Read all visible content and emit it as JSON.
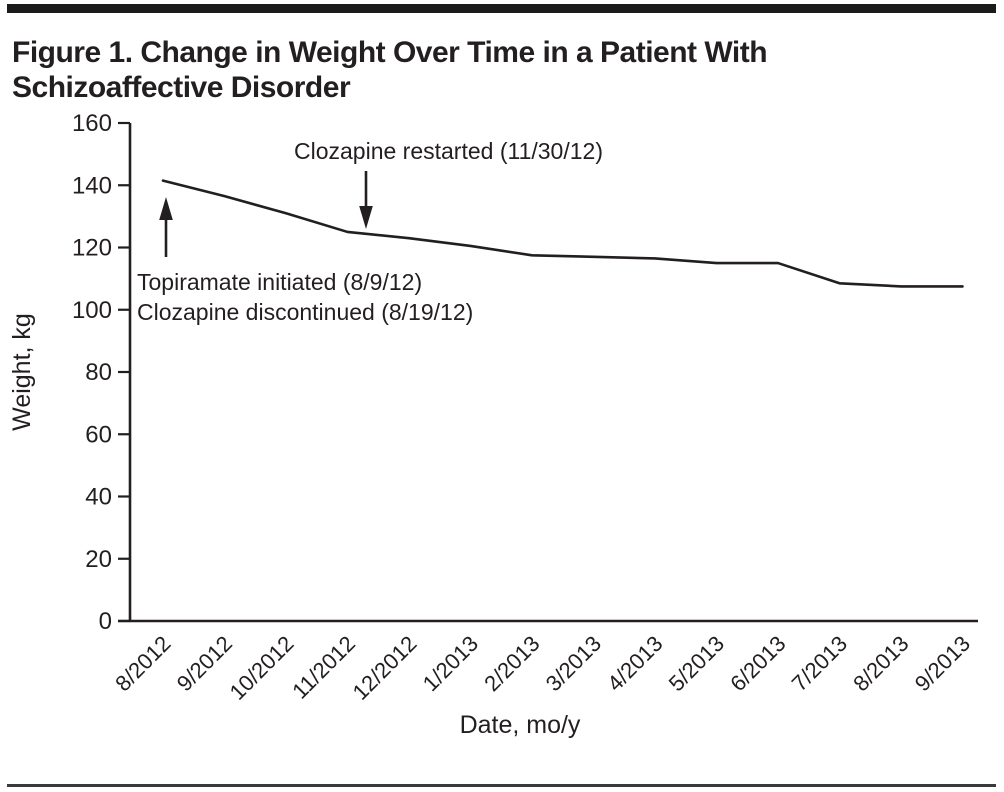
{
  "page": {
    "background": "#ffffff",
    "text_color": "#231f20",
    "top_bar_color": "#1b1b1b",
    "bottom_rule_color": "#3a3a3a"
  },
  "figure": {
    "title": "Figure 1. Change in Weight Over Time in a Patient With Schizoaffective Disorder"
  },
  "chart_data": {
    "type": "line",
    "title": "Change in Weight Over Time in a Patient With Schizoaffective Disorder",
    "categories": [
      "8/2012",
      "9/2012",
      "10/2012",
      "11/2012",
      "12/2012",
      "1/2013",
      "2/2013",
      "3/2013",
      "4/2013",
      "5/2013",
      "6/2013",
      "7/2013",
      "8/2013",
      "9/2013"
    ],
    "values": [
      141.5,
      136.5,
      131,
      125,
      123,
      120.5,
      117.5,
      117,
      116.5,
      115,
      115,
      108.5,
      107.5,
      107.5
    ],
    "series_name": "Weight",
    "xlabel": "Date, mo/y",
    "ylabel": "Weight, kg",
    "ylim": [
      0,
      160
    ],
    "yticks": [
      0,
      20,
      40,
      60,
      80,
      100,
      120,
      140,
      160
    ],
    "grid": false,
    "legend_position": "none",
    "line_color": "#231f20",
    "annotations": [
      {
        "id": "topiramate-initiated",
        "lines": [
          "Topiramate initiated (8/9/12)",
          "Clozapine discontinued (8/19/12)"
        ],
        "arrow_direction": "up",
        "arrow_points_to_category": "8/2012"
      },
      {
        "id": "clozapine-restarted",
        "lines": [
          "Clozapine restarted (11/30/12)"
        ],
        "arrow_direction": "down",
        "arrow_points_to_category": "11/2012"
      }
    ]
  }
}
